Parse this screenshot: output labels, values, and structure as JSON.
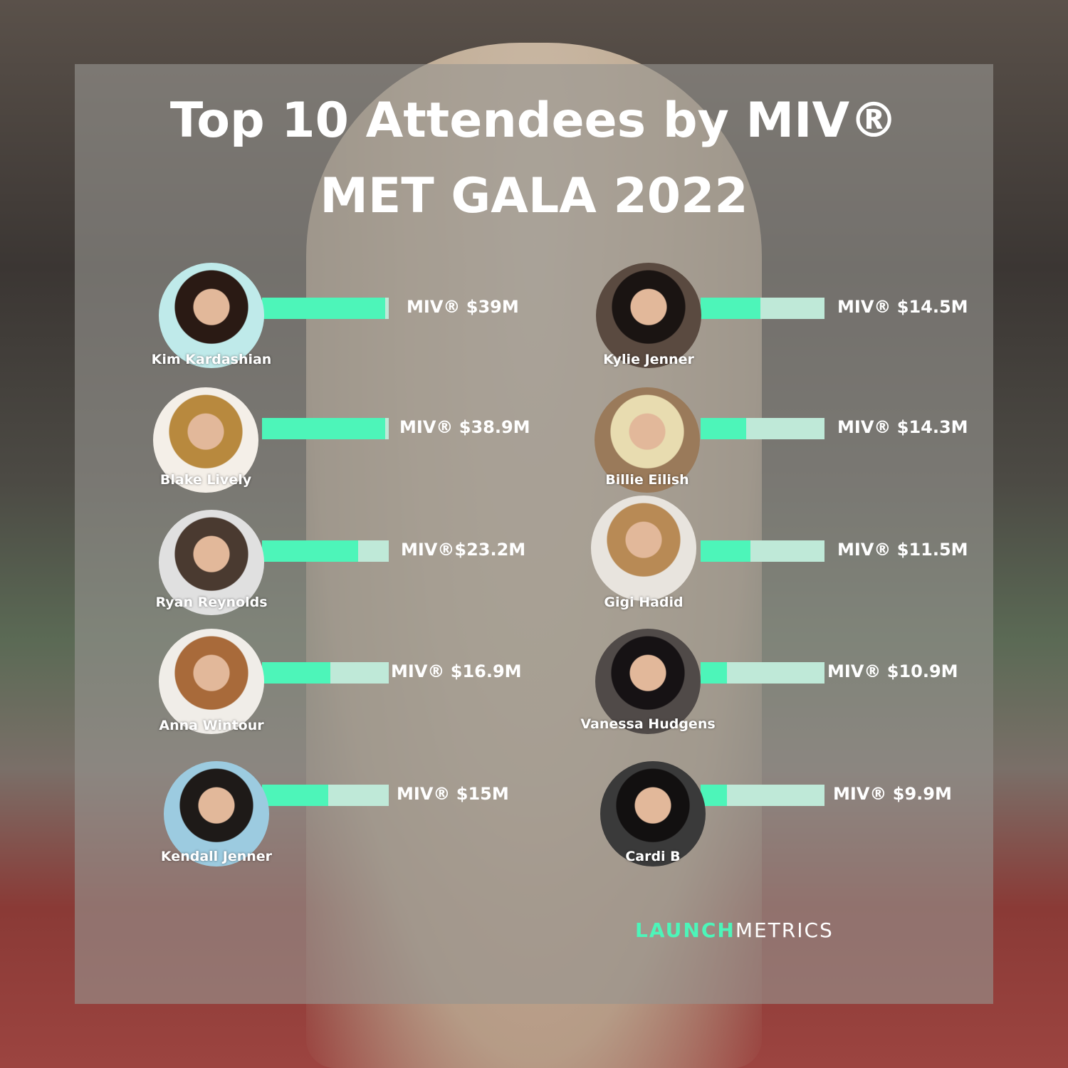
{
  "title_line1": "Top 10 Attendees by MIV®",
  "title_line2": "MET GALA 2022",
  "colors": {
    "bar_fill": "#4df5b9",
    "bar_track": "#bfe9d8",
    "panel": "#96948f",
    "text": "#ffffff"
  },
  "chart_data": {
    "type": "bar",
    "title": "Top 10 Attendees by MIV® MET GALA 2022",
    "unit": "USD millions",
    "items": [
      {
        "name": "Kim Kardashian",
        "label": "MIV® $39M",
        "value": 39,
        "bar_fill": 0.97
      },
      {
        "name": "Blake Lively",
        "label": "MIV® $38.9M",
        "value": 38.9,
        "bar_fill": 0.97
      },
      {
        "name": "Ryan Reynolds",
        "label": "MIV®$23.2M",
        "value": 23.2,
        "bar_fill": 0.76
      },
      {
        "name": "Anna Wintour",
        "label": "MIV® $16.9M",
        "value": 16.9,
        "bar_fill": 0.54
      },
      {
        "name": "Kendall Jenner",
        "label": "MIV® $15M",
        "value": 15,
        "bar_fill": 0.52
      },
      {
        "name": "Kylie Jenner",
        "label": "MIV® $14.5M",
        "value": 14.5,
        "bar_fill": 0.48
      },
      {
        "name": "Billie Eilish",
        "label": "MIV® $14.3M",
        "value": 14.3,
        "bar_fill": 0.37
      },
      {
        "name": "Gigi Hadid",
        "label": "MIV® $11.5M",
        "value": 11.5,
        "bar_fill": 0.4
      },
      {
        "name": "Vanessa Hudgens",
        "label": "MIV® $10.9M",
        "value": 10.9,
        "bar_fill": 0.21
      },
      {
        "name": "Cardi B",
        "label": "MIV® $9.9M",
        "value": 9.9,
        "bar_fill": 0.21
      }
    ]
  },
  "logo": {
    "part1": "LAUNCH",
    "part2": "METRICS"
  }
}
